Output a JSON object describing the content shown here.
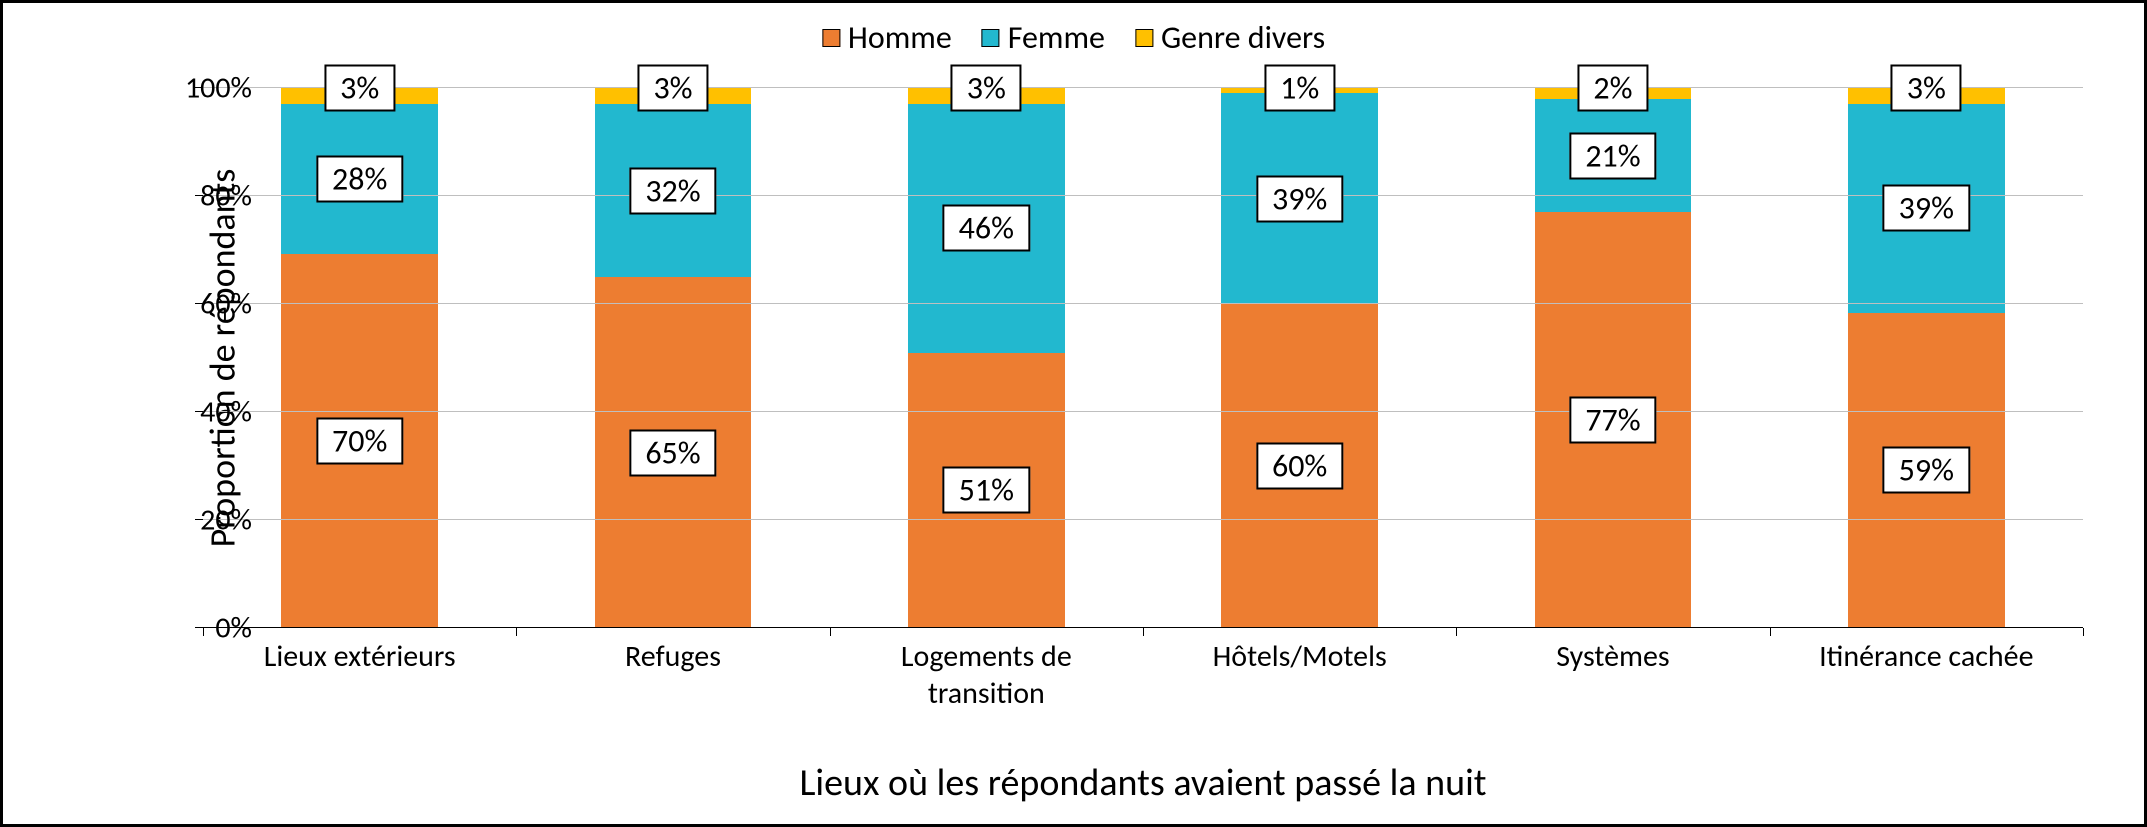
{
  "chart": {
    "type": "stacked-bar",
    "background_color": "#ffffff",
    "border_color": "#000000",
    "grid_color": "#bfbfbf",
    "fontsize_axis": 30,
    "fontsize_labels": 32,
    "fontsize_title": 38,
    "y_axis": {
      "title": "Proportion de répondants",
      "min": 0,
      "max": 100,
      "tick_step": 20,
      "ticks": [
        "0%",
        "20%",
        "40%",
        "60%",
        "80%",
        "100%"
      ]
    },
    "x_axis": {
      "title": "Lieux où les répondants avaient passé la nuit"
    },
    "legend": {
      "position": "top",
      "items": [
        {
          "label": "Homme",
          "color": "#ed7d31"
        },
        {
          "label": "Femme",
          "color": "#22b8cf"
        },
        {
          "label": "Genre divers",
          "color": "#ffc000"
        }
      ]
    },
    "series_colors": {
      "homme": "#ed7d31",
      "femme": "#22b8cf",
      "genre_divers": "#ffc000"
    },
    "categories": [
      {
        "label": "Lieux extérieurs",
        "values": {
          "homme": 70,
          "femme": 28,
          "genre_divers": 3
        },
        "display": {
          "homme": "70%",
          "femme": "28%",
          "genre_divers": "3%"
        }
      },
      {
        "label": "Refuges",
        "values": {
          "homme": 65,
          "femme": 32,
          "genre_divers": 3
        },
        "display": {
          "homme": "65%",
          "femme": "32%",
          "genre_divers": "3%"
        }
      },
      {
        "label": "Logements de transition",
        "values": {
          "homme": 51,
          "femme": 46,
          "genre_divers": 3
        },
        "display": {
          "homme": "51%",
          "femme": "46%",
          "genre_divers": "3%"
        }
      },
      {
        "label": "Hôtels/Motels",
        "values": {
          "homme": 60,
          "femme": 39,
          "genre_divers": 1
        },
        "display": {
          "homme": "60%",
          "femme": "39%",
          "genre_divers": "1%"
        }
      },
      {
        "label": "Systèmes",
        "values": {
          "homme": 77,
          "femme": 21,
          "genre_divers": 2
        },
        "display": {
          "homme": "77%",
          "femme": "21%",
          "genre_divers": "2%"
        }
      },
      {
        "label": "Itinérance cachée",
        "values": {
          "homme": 59,
          "femme": 39,
          "genre_divers": 3
        },
        "display": {
          "homme": "59%",
          "femme": "39%",
          "genre_divers": "3%"
        }
      }
    ]
  }
}
